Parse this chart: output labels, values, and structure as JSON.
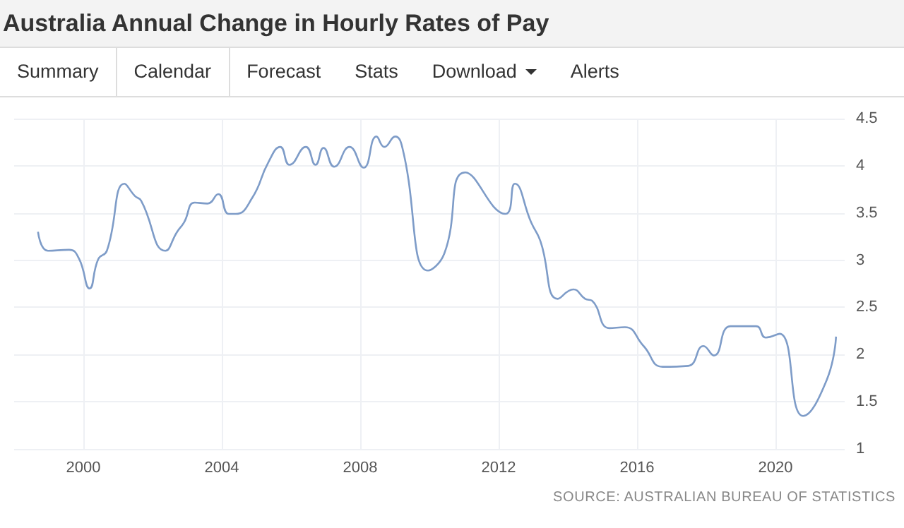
{
  "chart_data": {
    "type": "line",
    "title": "Australia Annual Change in Hourly Rates of Pay",
    "annotations": [
      "Summary",
      "Calendar",
      "Forecast",
      "Stats",
      "Download",
      "Alerts",
      "SOURCE: AUSTRALIAN BUREAU OF STATISTICS"
    ],
    "x": [
      1998.69,
      1998.98,
      1999.59,
      1999.87,
      2000.18,
      2000.43,
      2000.68,
      2001.19,
      2001.49,
      2001.67,
      2002.37,
      2002.71,
      2002.91,
      2003.22,
      2003.59,
      2003.9,
      2004.2,
      2004.4,
      2004.88,
      2005.35,
      2005.69,
      2005.96,
      2006.43,
      2006.71,
      2006.94,
      2007.25,
      2007.69,
      2008.1,
      2008.47,
      2008.7,
      2009.01,
      2009.22,
      2009.96,
      2010.43,
      2011.04,
      2012.2,
      2012.47,
      2012.94,
      2013.21,
      2013.71,
      2014.16,
      2014.5,
      2014.7,
      2015.2,
      2015.65,
      2016.19,
      2016.74,
      2017.48,
      2017.92,
      2018.22,
      2018.7,
      2019.44,
      2019.72,
      2020.12,
      2020.8,
      2021.48,
      2021.75
    ],
    "series": [
      {
        "color": "#7e9cc8",
        "values": [
          3.3,
          3.1,
          3.11,
          3.02,
          2.7,
          3.01,
          3.1,
          3.81,
          3.68,
          3.63,
          3.1,
          3.3,
          3.4,
          3.61,
          3.6,
          3.7,
          3.49,
          3.49,
          3.66,
          4.04,
          4.2,
          4.01,
          4.2,
          4.01,
          4.19,
          3.99,
          4.2,
          3.98,
          4.31,
          4.2,
          4.31,
          4.19,
          2.89,
          3.07,
          3.93,
          3.49,
          3.81,
          3.4,
          3.2,
          2.59,
          2.69,
          2.59,
          2.57,
          2.28,
          2.29,
          2.09,
          1.87,
          1.88,
          2.09,
          1.99,
          2.3,
          2.3,
          2.18,
          2.22,
          1.35,
          1.73,
          2.19
        ]
      }
    ],
    "xlim": [
      1998,
      2022
    ],
    "xticks": [
      2000,
      2004,
      2008,
      2012,
      2016,
      2020
    ],
    "ylim": [
      1,
      4.5
    ],
    "yticks": [
      1,
      1.5,
      2,
      2.5,
      3,
      3.5,
      4,
      4.5
    ],
    "grid": true,
    "marker": "none",
    "line_style": "solid"
  }
}
